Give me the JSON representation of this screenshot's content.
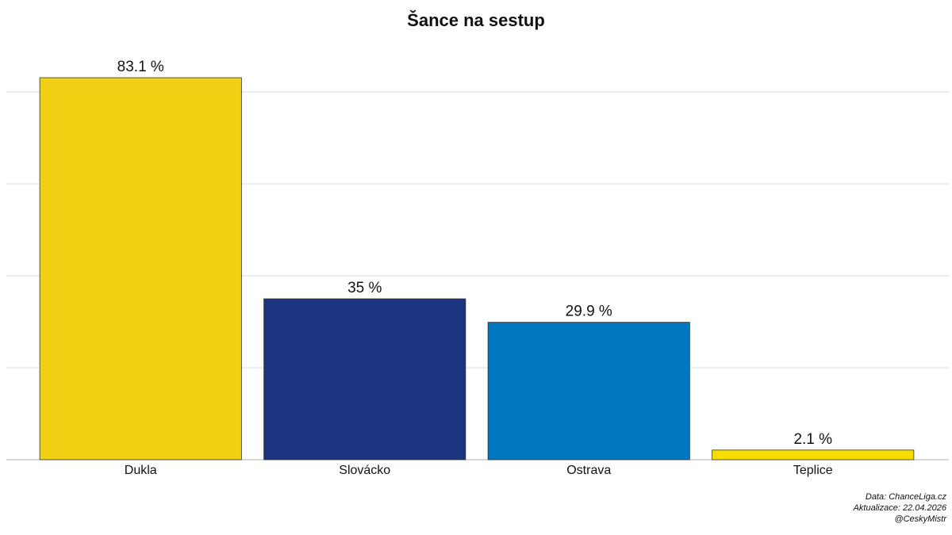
{
  "chart_data": {
    "type": "bar",
    "title": "Šance na sestup",
    "categories": [
      "Dukla",
      "Slovácko",
      "Ostrava",
      "Teplice"
    ],
    "values": [
      83.1,
      35,
      29.9,
      2.1
    ],
    "value_labels": [
      "83.1 %",
      "35 %",
      "29.9 %",
      "2.1 %"
    ],
    "colors": [
      "#f2d013",
      "#1c3380",
      "#0077bf",
      "#f7dc00"
    ],
    "ylim": [
      0,
      87
    ],
    "yticks": [
      0,
      20,
      40,
      60,
      80
    ],
    "grid": true,
    "caption": [
      "Data: ChanceLiga.cz",
      "Aktualizace:  22.04.2026",
      "@CeskyMistr"
    ]
  }
}
